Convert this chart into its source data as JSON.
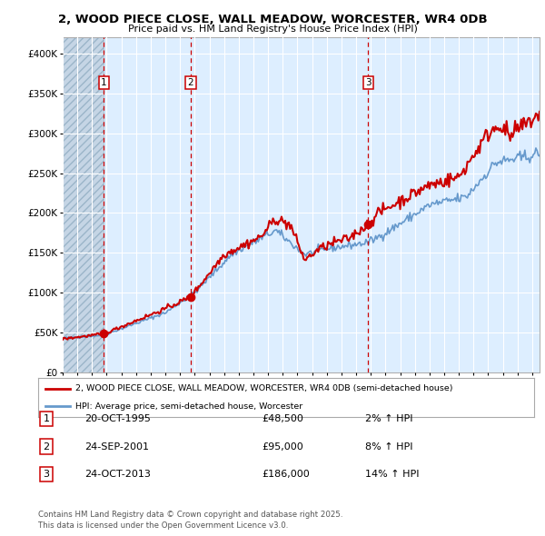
{
  "title": "2, WOOD PIECE CLOSE, WALL MEADOW, WORCESTER, WR4 0DB",
  "subtitle": "Price paid vs. HM Land Registry's House Price Index (HPI)",
  "legend_line1": "2, WOOD PIECE CLOSE, WALL MEADOW, WORCESTER, WR4 0DB (semi-detached house)",
  "legend_line2": "HPI: Average price, semi-detached house, Worcester",
  "footer": "Contains HM Land Registry data © Crown copyright and database right 2025.\nThis data is licensed under the Open Government Licence v3.0.",
  "sale_points": [
    {
      "label": "1",
      "date": "20-OCT-1995",
      "year": 1995.8,
      "price": 48500,
      "pct": "2%"
    },
    {
      "label": "2",
      "date": "24-SEP-2001",
      "year": 2001.73,
      "price": 95000,
      "pct": "8%"
    },
    {
      "label": "3",
      "date": "24-OCT-2013",
      "year": 2013.81,
      "price": 186000,
      "pct": "14%"
    }
  ],
  "red_color": "#cc0000",
  "blue_color": "#6699cc",
  "bg_color": "#ddeeff",
  "ylim": [
    0,
    420000
  ],
  "xlim_start": 1993.0,
  "xlim_end": 2025.5,
  "yticks": [
    0,
    50000,
    100000,
    150000,
    200000,
    250000,
    300000,
    350000,
    400000
  ],
  "xticks": [
    1993,
    1994,
    1995,
    1996,
    1997,
    1998,
    1999,
    2000,
    2001,
    2002,
    2003,
    2004,
    2005,
    2006,
    2007,
    2008,
    2009,
    2010,
    2011,
    2012,
    2013,
    2014,
    2015,
    2016,
    2017,
    2018,
    2019,
    2020,
    2021,
    2022,
    2023,
    2024,
    2025
  ]
}
